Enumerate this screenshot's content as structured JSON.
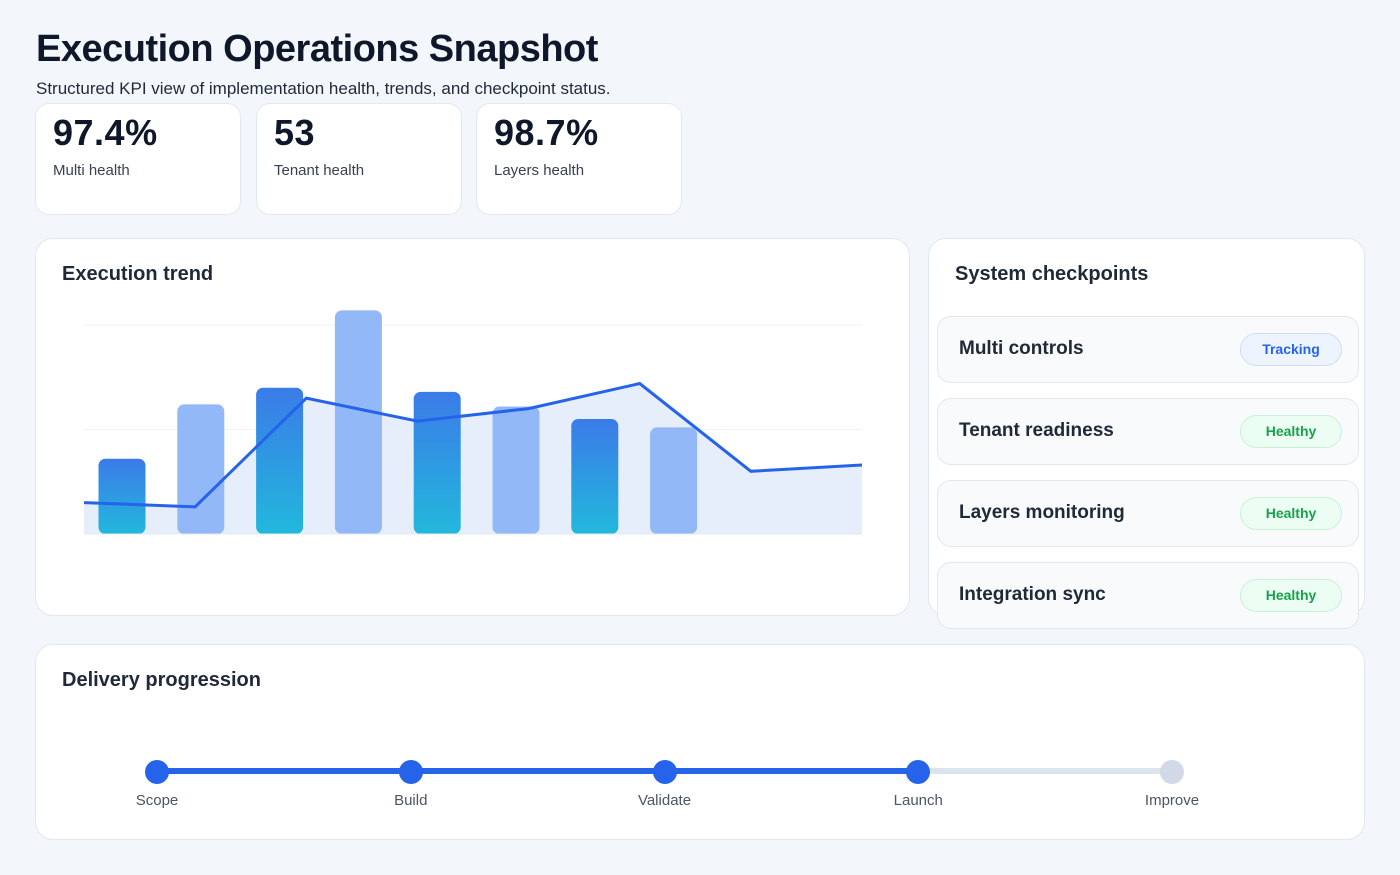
{
  "header": {
    "title": "Execution Operations Snapshot",
    "subtitle": "Structured KPI view of implementation health, trends, and checkpoint status."
  },
  "kpis": [
    {
      "value": "97.4%",
      "label": "Multi health"
    },
    {
      "value": "53",
      "label": "Tenant health"
    },
    {
      "value": "98.7%",
      "label": "Layers health"
    }
  ],
  "trend": {
    "title": "Execution trend"
  },
  "chart_data": {
    "type": "bar",
    "title": "Execution trend",
    "xlabel": "",
    "ylabel": "",
    "ylim": [
      0,
      100
    ],
    "grid": true,
    "bars": [
      36,
      62,
      70,
      107,
      68,
      61,
      55,
      51
    ],
    "line": [
      15,
      13,
      65,
      54,
      60,
      72,
      30,
      33
    ],
    "colors": {
      "bar_dark_top": "#3b7be8",
      "bar_dark_bottom": "#22b8dc",
      "bar_light": "#8db4f8",
      "line": "#2563eb",
      "area": "#e3ebfa"
    }
  },
  "checkpoints": {
    "title": "System checkpoints",
    "items": [
      {
        "name": "Multi controls",
        "status": "Tracking"
      },
      {
        "name": "Tenant readiness",
        "status": "Healthy"
      },
      {
        "name": "Layers monitoring",
        "status": "Healthy"
      },
      {
        "name": "Integration sync",
        "status": "Healthy"
      }
    ]
  },
  "delivery": {
    "title": "Delivery progression",
    "progress_completed_steps": 4,
    "steps": [
      "Scope",
      "Build",
      "Validate",
      "Launch",
      "Improve"
    ],
    "colors": {
      "done": "#2563eb",
      "pending": "#d1d9e6"
    }
  }
}
